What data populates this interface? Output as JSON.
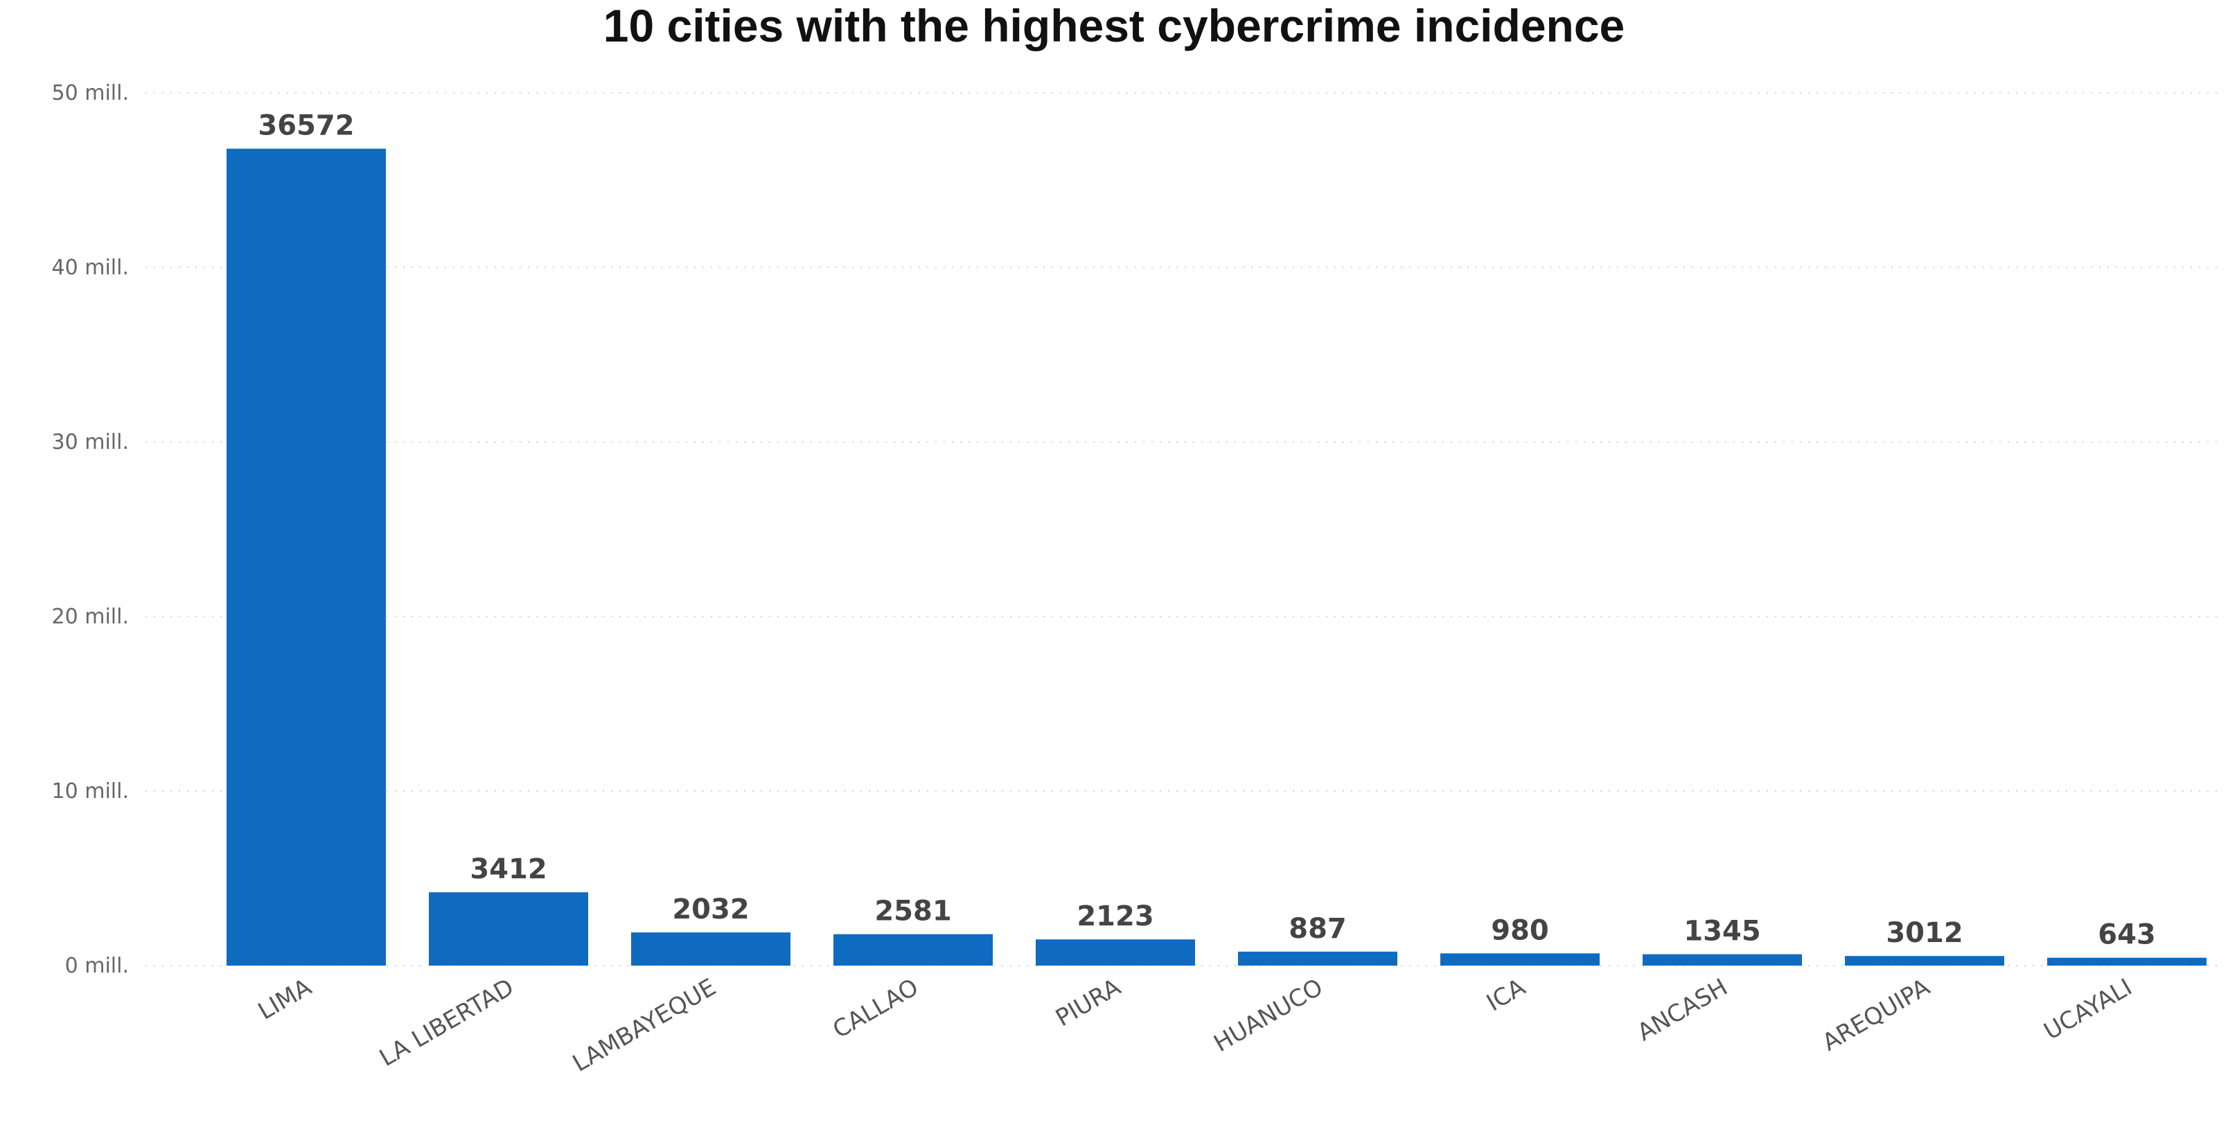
{
  "chart_data": {
    "type": "bar",
    "title": "10 cities with the highest cybercrime incidence",
    "xlabel": "",
    "ylabel": "",
    "categories": [
      "LIMA",
      "LA LIBERTAD",
      "LAMBAYEQUE",
      "CALLAO",
      "PIURA",
      "HUANUCO",
      "ICA",
      "ANCASH",
      "AREQUIPA",
      "UCAYALI"
    ],
    "values": [
      46800000,
      4200000,
      1900000,
      1800000,
      1500000,
      800000,
      700000,
      650000,
      550000,
      450000
    ],
    "data_labels": [
      "36572",
      "3412",
      "2032",
      "2581",
      "2123",
      "887",
      "980",
      "1345",
      "3012",
      "643"
    ],
    "ylim": [
      0,
      50000000
    ],
    "y_ticks": [
      0,
      10000000,
      20000000,
      30000000,
      40000000,
      50000000
    ],
    "y_tick_labels": [
      "0 mill.",
      "10 mill.",
      "20 mill.",
      "30 mill.",
      "40 mill.",
      "50 mill."
    ],
    "grid": true,
    "legend": "none",
    "colors": {
      "bar": "#0F6BBF"
    }
  }
}
